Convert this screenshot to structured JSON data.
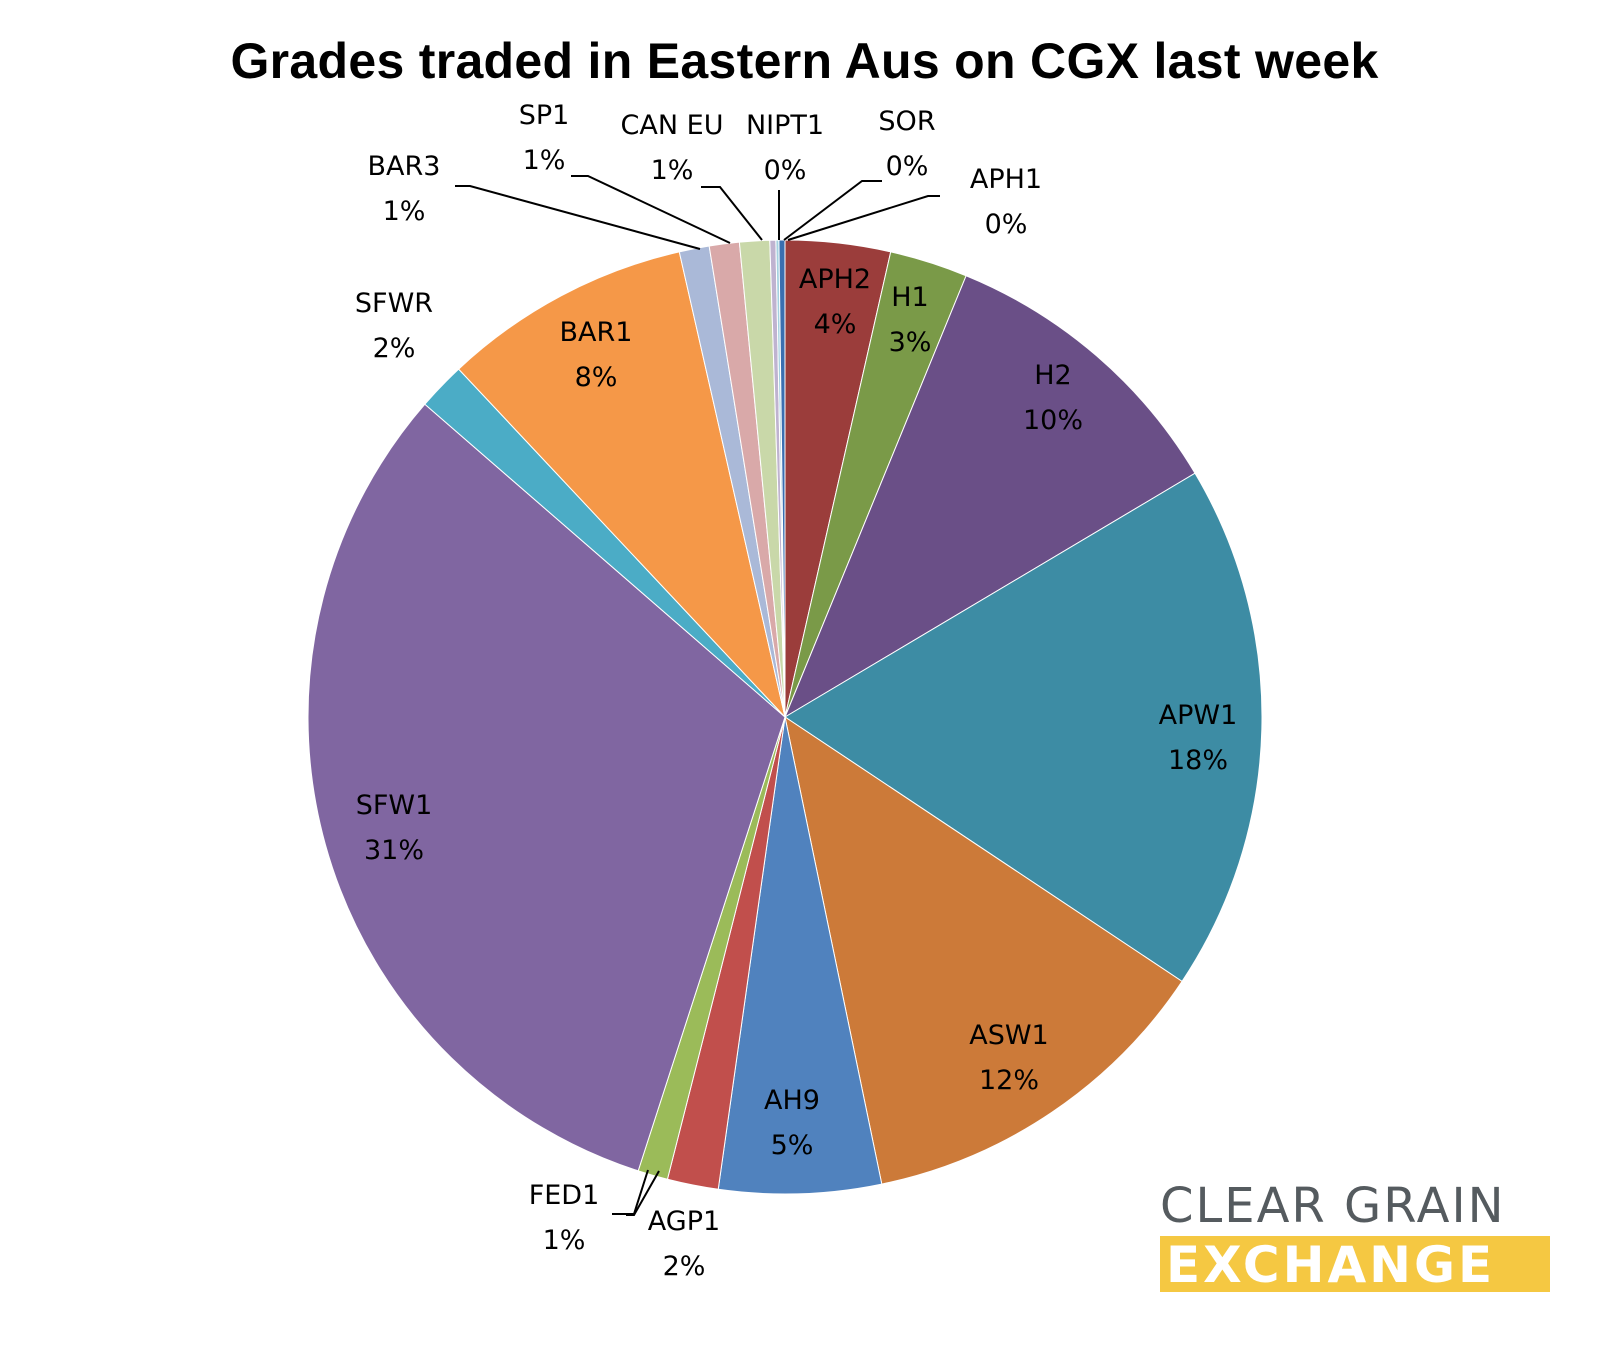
{
  "chart_data": {
    "type": "pie",
    "title": "Grades traded in Eastern Aus on CGX last week",
    "slices": [
      {
        "label": "APH2",
        "value": 3.5,
        "display": "4%",
        "color": "#9b3d3b"
      },
      {
        "label": "H1",
        "value": 2.6,
        "display": "3%",
        "color": "#7a9a48"
      },
      {
        "label": "H2",
        "value": 10.1,
        "display": "10%",
        "color": "#6a4f87"
      },
      {
        "label": "APW1",
        "value": 17.6,
        "display": "18%",
        "color": "#3d8ca4"
      },
      {
        "label": "ASW1",
        "value": 12.2,
        "display": "12%",
        "color": "#cc7a39"
      },
      {
        "label": "AH9",
        "value": 5.4,
        "display": "5%",
        "color": "#5082be"
      },
      {
        "label": "AGP1",
        "value": 1.7,
        "display": "2%",
        "color": "#c14f4c"
      },
      {
        "label": "FED1",
        "value": 1.0,
        "display": "1%",
        "color": "#9bbb59"
      },
      {
        "label": "SFW1",
        "value": 30.9,
        "display": "31%",
        "color": "#8066a1"
      },
      {
        "label": "SFWR",
        "value": 1.6,
        "display": "2%",
        "color": "#4bacc6"
      },
      {
        "label": "BAR1",
        "value": 8.3,
        "display": "8%",
        "color": "#f59848"
      },
      {
        "label": "BAR3",
        "value": 1.0,
        "display": "1%",
        "color": "#aab9d8"
      },
      {
        "label": "SP1",
        "value": 1.0,
        "display": "1%",
        "color": "#d9a9a9"
      },
      {
        "label": "CAN EU",
        "value": 1.0,
        "display": "1%",
        "color": "#c9d8a9"
      },
      {
        "label": "NIPT1",
        "value": 0.2,
        "display": "0%",
        "color": "#bfb3d0"
      },
      {
        "label": "SOR",
        "value": 0.1,
        "display": "0%",
        "color": "#a5d1e0"
      },
      {
        "label": "APH1",
        "value": 0.2,
        "display": "0%",
        "color": "#3a6fb0"
      }
    ]
  },
  "logo": {
    "line1": "CLEAR GRAIN",
    "line2": "EXCHANGE"
  }
}
